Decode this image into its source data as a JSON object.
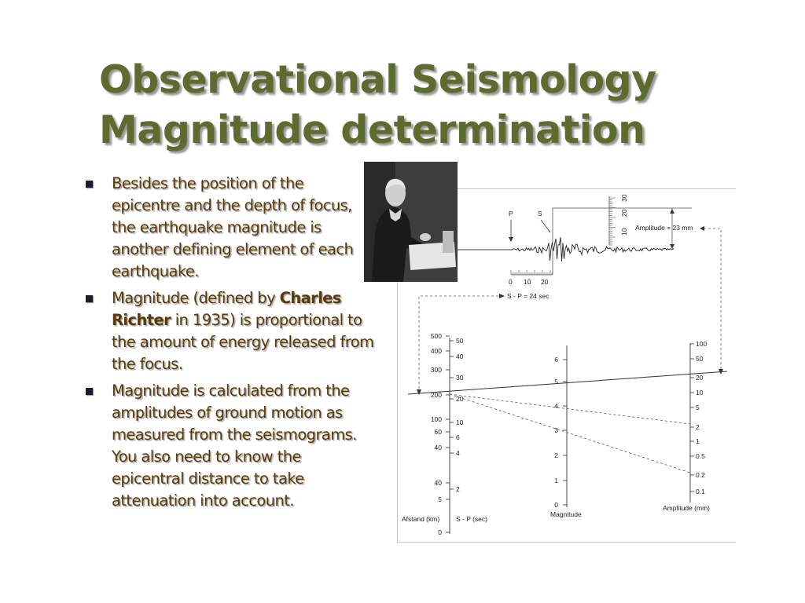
{
  "slide": {
    "title_lines": [
      "Observational Seismology",
      "Magnitude determination"
    ],
    "bullets": [
      {
        "text": "Besides the position of the epicentre and the depth of focus, the earthquake magnitude is another defining element of each earthquake."
      },
      {
        "pre": "Magnitude (defined by ",
        "bold": "Charles Richter",
        "post": " in 1935) is proportional to the amount of energy released from the focus."
      },
      {
        "text": "Magnitude is calculated from the amplitudes of ground motion as measured from the seismograms. You also need to know the epicentral distance to take attenuation into account."
      }
    ]
  },
  "photo": {
    "subject": "portrait-of-charles-richter"
  },
  "seismogram": {
    "p_label": "P",
    "s_label": "S",
    "amplitude_label": "Amplitude = 23 mm",
    "amp_scale_ticks": [
      "10",
      "20",
      "30"
    ],
    "time_ticks": [
      "0",
      "10",
      "20"
    ],
    "sp_label": "S - P = 24 sec"
  },
  "nomogram": {
    "distance_axis": {
      "label": "Afstand (km)",
      "ticks": [
        "500",
        "400",
        "300",
        "200",
        "100",
        "60",
        "40",
        "40",
        "5",
        "0"
      ]
    },
    "sp_axis": {
      "label": "S - P (sec)",
      "ticks": [
        "50",
        "40",
        "30",
        "20",
        "10",
        "6",
        "4",
        "2"
      ]
    },
    "magnitude_axis": {
      "label": "Magnitude",
      "ticks": [
        "6",
        "5",
        "4",
        "3",
        "2",
        "1",
        "0"
      ]
    },
    "amplitude_axis": {
      "label": "Amplitude (mm)",
      "ticks": [
        "100",
        "50",
        "20",
        "10",
        "5",
        "2",
        "1",
        "0.5",
        "0.2",
        "0.1"
      ]
    }
  },
  "colors": {
    "title": "#5e6b2e",
    "body_text": "#5a3a08",
    "bullet": "#1b1b30",
    "photo_bg": "#3e3e3e"
  }
}
